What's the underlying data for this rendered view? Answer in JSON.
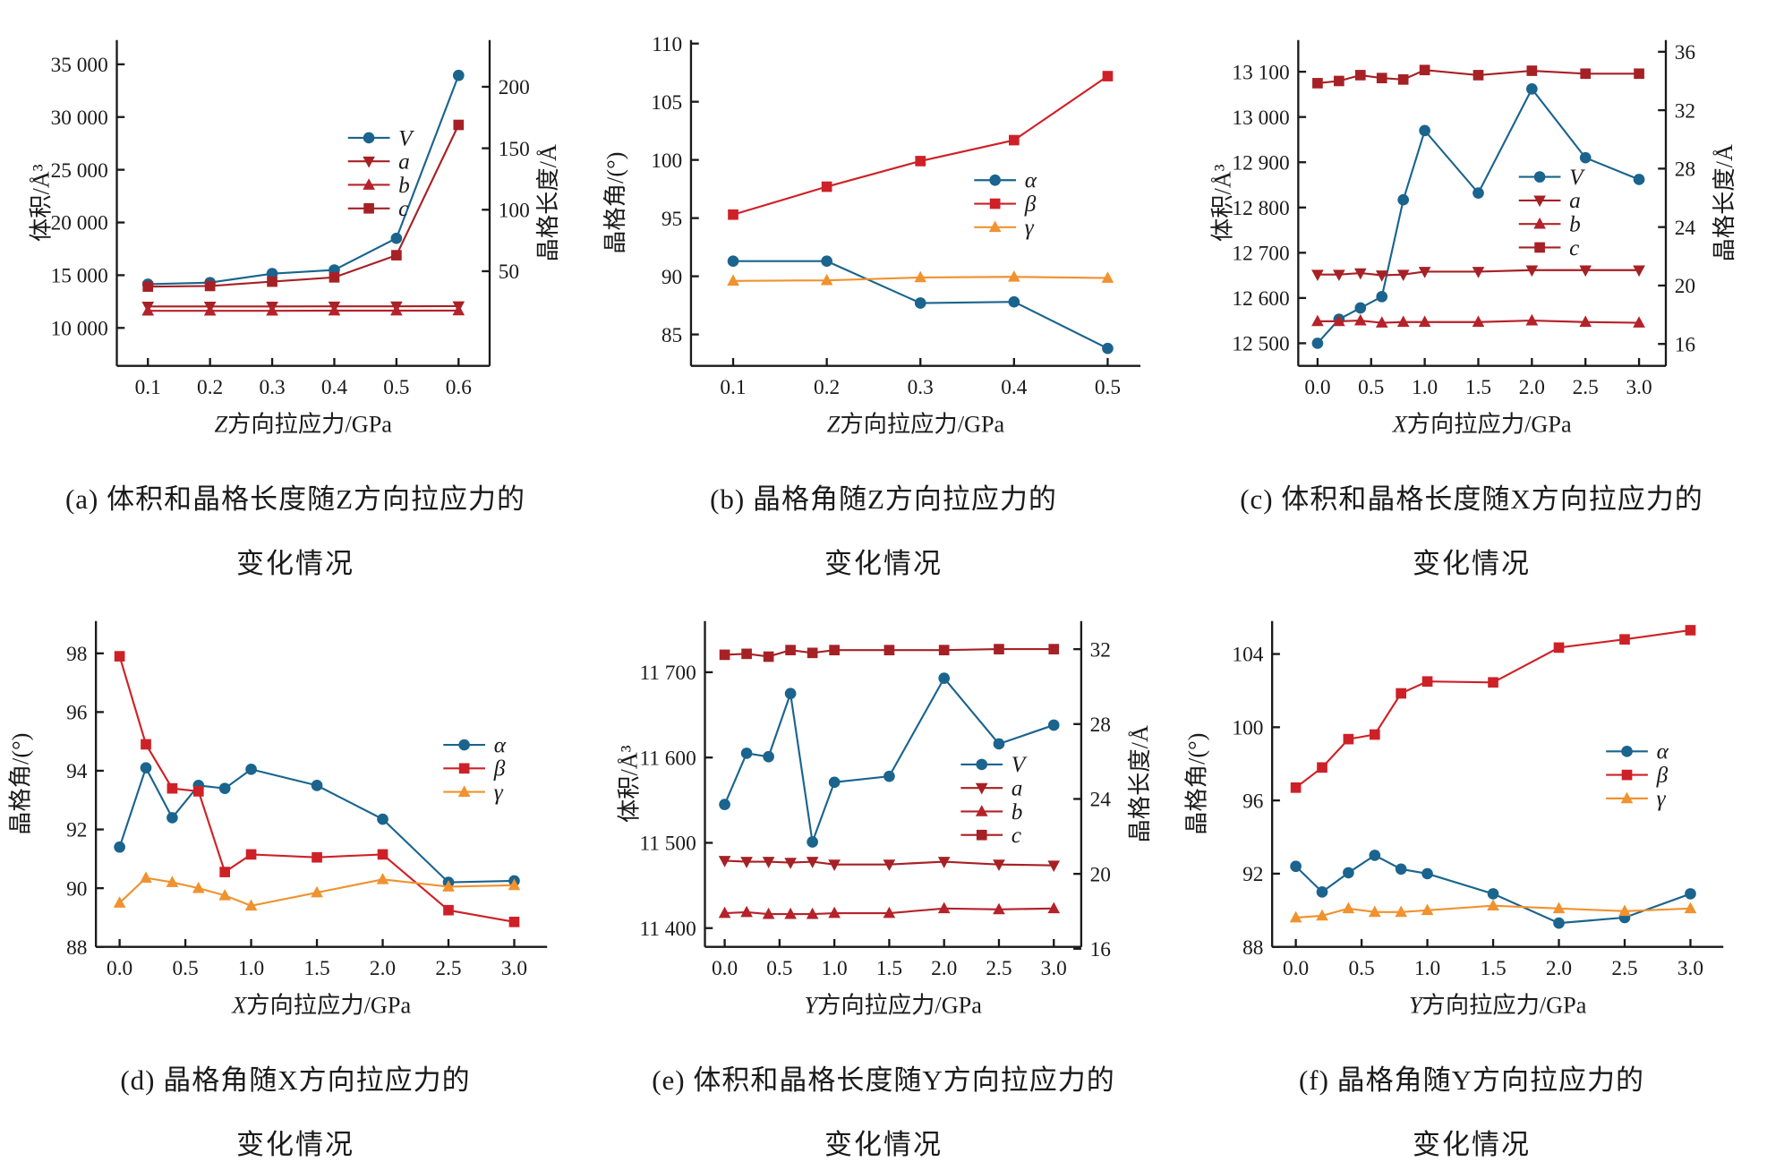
{
  "figure": {
    "background": "#ffffff",
    "caption_line2_shared": "变化情况"
  },
  "colors": {
    "blue": "#1a648e",
    "dark_red": "#a62125",
    "red": "#ce2127",
    "orange": "#f0922f",
    "axis": "#1a1a1a"
  },
  "chart_data": [
    {
      "id": "a",
      "type": "line",
      "xlabel_prefix": "Z",
      "xlabel_rest": "方向拉应力/GPa",
      "xlim": [
        0.05,
        0.65
      ],
      "xticks": [
        0.1,
        0.2,
        0.3,
        0.4,
        0.5,
        0.6
      ],
      "xtick_labels": [
        "0.1",
        "0.2",
        "0.3",
        "0.4",
        "0.5",
        "0.6"
      ],
      "x": [
        0.1,
        0.2,
        0.3,
        0.4,
        0.5,
        0.6
      ],
      "axes": {
        "left": {
          "label": "体积/Å³",
          "lim": [
            6400,
            37300
          ],
          "ticks": [
            10000,
            15000,
            20000,
            25000,
            30000,
            35000
          ],
          "tick_labels": [
            "10 000",
            "15 000",
            "20 000",
            "25 000",
            "30 000",
            "35 000"
          ]
        },
        "right": {
          "label": "晶格长度/Å",
          "lim": [
            -27,
            238
          ],
          "ticks": [
            50,
            100,
            150,
            200
          ],
          "tick_labels": [
            "50",
            "100",
            "150",
            "200"
          ]
        }
      },
      "series": [
        {
          "name": "V",
          "axis": "left",
          "marker": "circle",
          "color": "#1a648e",
          "values": [
            14150,
            14300,
            15150,
            15500,
            18500,
            33950
          ]
        },
        {
          "name": "a",
          "axis": "right",
          "marker": "tri-down",
          "color": "#a62125",
          "values": [
            21.3,
            21.3,
            21.3,
            21.4,
            21.5,
            21.6
          ]
        },
        {
          "name": "b",
          "axis": "right",
          "marker": "tri-up",
          "color": "#b5222a",
          "values": [
            17.8,
            17.8,
            17.8,
            17.9,
            17.9,
            18.0
          ]
        },
        {
          "name": "c",
          "axis": "right",
          "marker": "square",
          "color": "#a62125",
          "values": [
            37.5,
            38.0,
            41.5,
            45.0,
            63.0,
            169.0
          ]
        }
      ],
      "legend": {
        "fx": 0.62,
        "fy": 0.3
      },
      "caption_line1": "(a) 体积和晶格长度随Z方向拉应力的",
      "caption_line2": "变化情况"
    },
    {
      "id": "b",
      "type": "line",
      "xlabel_prefix": "Z",
      "xlabel_rest": "方向拉应力/GPa",
      "xlim": [
        0.055,
        0.535
      ],
      "xticks": [
        0.1,
        0.2,
        0.3,
        0.4,
        0.5
      ],
      "xtick_labels": [
        "0.1",
        "0.2",
        "0.3",
        "0.4",
        "0.5"
      ],
      "x": [
        0.1,
        0.2,
        0.3,
        0.4,
        0.5
      ],
      "axes": {
        "left": {
          "label": "晶格角/(°)",
          "lim": [
            82.3,
            110.3
          ],
          "ticks": [
            85,
            90,
            95,
            100,
            105,
            110
          ],
          "tick_labels": [
            "85",
            "90",
            "95",
            "100",
            "105",
            "110"
          ]
        }
      },
      "series": [
        {
          "name": "α",
          "axis": "left",
          "marker": "circle",
          "color": "#1a648e",
          "values": [
            91.3,
            91.3,
            87.7,
            87.8,
            83.8
          ]
        },
        {
          "name": "β",
          "axis": "left",
          "marker": "square",
          "color": "#ce2127",
          "values": [
            95.3,
            97.7,
            99.9,
            101.7,
            107.2
          ]
        },
        {
          "name": "γ",
          "axis": "left",
          "marker": "tri-up",
          "color": "#f0922f",
          "values": [
            89.6,
            89.65,
            89.9,
            89.95,
            89.85
          ]
        }
      ],
      "legend": {
        "fx": 0.63,
        "fy": 0.43
      },
      "caption_line1": "(b) 晶格角随Z方向拉应力的",
      "caption_line2": "变化情况"
    },
    {
      "id": "c",
      "type": "line",
      "xlabel_prefix": "X",
      "xlabel_rest": "方向拉应力/GPa",
      "xlim": [
        -0.18,
        3.25
      ],
      "xticks": [
        0.0,
        0.5,
        1.0,
        1.5,
        2.0,
        2.5,
        3.0
      ],
      "xtick_labels": [
        "0.0",
        "0.5",
        "1.0",
        "1.5",
        "2.0",
        "2.5",
        "3.0"
      ],
      "x": [
        0.0,
        0.2,
        0.4,
        0.6,
        0.8,
        1.0,
        1.5,
        2.0,
        2.5,
        3.0
      ],
      "axes": {
        "left": {
          "label": "体积/Å³",
          "lim": [
            12450,
            13170
          ],
          "ticks": [
            12500,
            12600,
            12700,
            12800,
            12900,
            13000,
            13100
          ],
          "tick_labels": [
            "12 500",
            "12 600",
            "12 700",
            "12 800",
            "12 900",
            "13 000",
            "13 100"
          ]
        },
        "right": {
          "label": "晶格长度/Å",
          "lim": [
            14.5,
            36.8
          ],
          "ticks": [
            16,
            20,
            24,
            28,
            32,
            36
          ],
          "tick_labels": [
            "16",
            "20",
            "24",
            "28",
            "32",
            "36"
          ]
        }
      },
      "series": [
        {
          "name": "V",
          "axis": "left",
          "marker": "circle",
          "color": "#1a648e",
          "values": [
            12500,
            12553,
            12578,
            12603,
            12817,
            12970,
            12832,
            13062,
            12910,
            12862
          ]
        },
        {
          "name": "a",
          "axis": "right",
          "marker": "tri-down",
          "color": "#a62125",
          "values": [
            20.75,
            20.75,
            20.85,
            20.7,
            20.75,
            20.95,
            20.95,
            21.05,
            21.05,
            21.05
          ]
        },
        {
          "name": "b",
          "axis": "right",
          "marker": "tri-up",
          "color": "#b5222a",
          "values": [
            17.55,
            17.55,
            17.6,
            17.45,
            17.5,
            17.5,
            17.5,
            17.6,
            17.5,
            17.45
          ]
        },
        {
          "name": "c",
          "axis": "right",
          "marker": "square",
          "color": "#a62125",
          "values": [
            33.85,
            34.0,
            34.4,
            34.2,
            34.1,
            34.75,
            34.4,
            34.7,
            34.5,
            34.5
          ]
        }
      ],
      "legend": {
        "fx": 0.6,
        "fy": 0.42
      },
      "caption_line1": "(c) 体积和晶格长度随X方向拉应力的",
      "caption_line2": "变化情况"
    },
    {
      "id": "d",
      "type": "line",
      "xlabel_prefix": "X",
      "xlabel_rest": "方向拉应力/GPa",
      "xlim": [
        -0.18,
        3.25
      ],
      "xticks": [
        0.0,
        0.5,
        1.0,
        1.5,
        2.0,
        2.5,
        3.0
      ],
      "xtick_labels": [
        "0.0",
        "0.5",
        "1.0",
        "1.5",
        "2.0",
        "2.5",
        "3.0"
      ],
      "x": [
        0.0,
        0.2,
        0.4,
        0.6,
        0.8,
        1.0,
        1.5,
        2.0,
        2.5,
        3.0
      ],
      "axes": {
        "left": {
          "label": "晶格角/(°)",
          "lim": [
            88,
            99.1
          ],
          "ticks": [
            88,
            90,
            92,
            94,
            96,
            98
          ],
          "tick_labels": [
            "88",
            "90",
            "92",
            "94",
            "96",
            "98"
          ]
        }
      },
      "series": [
        {
          "name": "α",
          "axis": "left",
          "marker": "circle",
          "color": "#1a648e",
          "values": [
            91.4,
            94.1,
            92.4,
            93.5,
            93.4,
            94.05,
            93.5,
            92.35,
            90.2,
            90.25
          ]
        },
        {
          "name": "β",
          "axis": "left",
          "marker": "square",
          "color": "#ce2127",
          "values": [
            97.9,
            94.9,
            93.4,
            93.3,
            90.55,
            91.15,
            91.05,
            91.15,
            89.25,
            88.85
          ]
        },
        {
          "name": "γ",
          "axis": "left",
          "marker": "tri-up",
          "color": "#f0922f",
          "values": [
            89.5,
            90.35,
            90.2,
            90.0,
            89.75,
            89.4,
            89.85,
            90.3,
            90.05,
            90.1
          ]
        }
      ],
      "legend": {
        "fx": 0.77,
        "fy": 0.38
      },
      "caption_line1": "(d) 晶格角随X方向拉应力的",
      "caption_line2": "变化情况"
    },
    {
      "id": "e",
      "type": "line",
      "xlabel_prefix": "Y",
      "xlabel_rest": "方向拉应力/GPa",
      "xlim": [
        -0.18,
        3.25
      ],
      "xticks": [
        0.0,
        0.5,
        1.0,
        1.5,
        2.0,
        2.5,
        3.0
      ],
      "xtick_labels": [
        "0.0",
        "0.5",
        "1.0",
        "1.5",
        "2.0",
        "2.5",
        "3.0"
      ],
      "x": [
        0.0,
        0.2,
        0.4,
        0.6,
        0.8,
        1.0,
        1.5,
        2.0,
        2.5,
        3.0
      ],
      "axes": {
        "left": {
          "label": "体积/Å³",
          "lim": [
            11378,
            11760
          ],
          "ticks": [
            11400,
            11500,
            11600,
            11700
          ],
          "tick_labels": [
            "11 400",
            "11 500",
            "11 600",
            "11 700"
          ]
        },
        "right": {
          "label": "晶格长度/Å",
          "lim": [
            16.1,
            33.5
          ],
          "ticks": [
            16,
            20,
            24,
            28,
            32
          ],
          "tick_labels": [
            "16",
            "20",
            "24",
            "28",
            "32"
          ]
        }
      },
      "series": [
        {
          "name": "V",
          "axis": "left",
          "marker": "circle",
          "color": "#1a648e",
          "values": [
            11545,
            11605,
            11601,
            11675,
            11501,
            11571,
            11578,
            11693,
            11616,
            11638
          ]
        },
        {
          "name": "a",
          "axis": "right",
          "marker": "tri-down",
          "color": "#a62125",
          "values": [
            20.7,
            20.65,
            20.65,
            20.6,
            20.65,
            20.5,
            20.5,
            20.65,
            20.5,
            20.45
          ]
        },
        {
          "name": "b",
          "axis": "right",
          "marker": "tri-up",
          "color": "#b5222a",
          "values": [
            17.9,
            17.95,
            17.85,
            17.85,
            17.85,
            17.9,
            17.9,
            18.15,
            18.1,
            18.15
          ]
        },
        {
          "name": "c",
          "axis": "right",
          "marker": "square",
          "color": "#a62125",
          "values": [
            31.7,
            31.75,
            31.6,
            31.95,
            31.8,
            31.95,
            31.95,
            31.95,
            32.0,
            32.0
          ]
        }
      ],
      "legend": {
        "fx": 0.68,
        "fy": 0.44
      },
      "caption_line1": "(e) 体积和晶格长度随Y方向拉应力的",
      "caption_line2": "变化情况"
    },
    {
      "id": "f",
      "type": "line",
      "xlabel_prefix": "Y",
      "xlabel_rest": "方向拉应力/GPa",
      "xlim": [
        -0.18,
        3.25
      ],
      "xticks": [
        0.0,
        0.5,
        1.0,
        1.5,
        2.0,
        2.5,
        3.0
      ],
      "xtick_labels": [
        "0.0",
        "0.5",
        "1.0",
        "1.5",
        "2.0",
        "2.5",
        "3.0"
      ],
      "x": [
        0.0,
        0.2,
        0.4,
        0.6,
        0.8,
        1.0,
        1.5,
        2.0,
        2.5,
        3.0
      ],
      "axes": {
        "left": {
          "label": "晶格角/(°)",
          "lim": [
            88,
            105.8
          ],
          "ticks": [
            88,
            92,
            96,
            100,
            104
          ],
          "tick_labels": [
            "88",
            "92",
            "96",
            "100",
            "104"
          ]
        }
      },
      "series": [
        {
          "name": "α",
          "axis": "left",
          "marker": "circle",
          "color": "#1a648e",
          "values": [
            92.4,
            91.0,
            92.05,
            93.0,
            92.25,
            92.0,
            90.9,
            89.3,
            89.6,
            90.9
          ]
        },
        {
          "name": "β",
          "axis": "left",
          "marker": "square",
          "color": "#ce2127",
          "values": [
            96.7,
            97.8,
            99.35,
            99.6,
            101.85,
            102.5,
            102.45,
            104.35,
            104.8,
            105.3
          ]
        },
        {
          "name": "γ",
          "axis": "left",
          "marker": "tri-up",
          "color": "#f0922f",
          "values": [
            89.6,
            89.7,
            90.1,
            89.9,
            89.9,
            90.0,
            90.25,
            90.1,
            89.95,
            90.1
          ]
        }
      ],
      "legend": {
        "fx": 0.74,
        "fy": 0.4
      },
      "caption_line1": "(f) 晶格角随Y方向拉应力的",
      "caption_line2": "变化情况"
    }
  ]
}
